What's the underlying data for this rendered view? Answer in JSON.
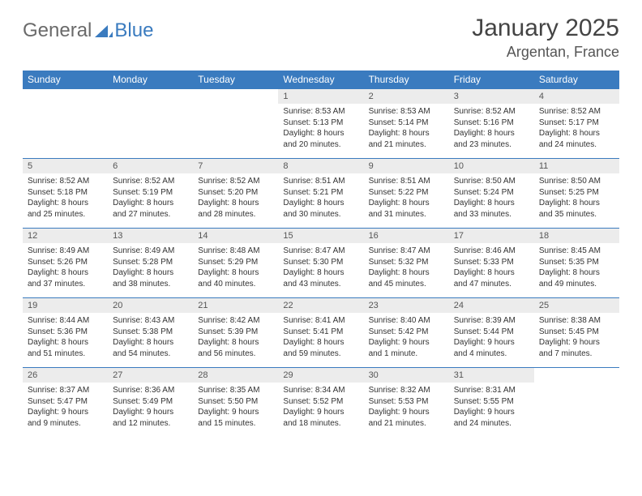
{
  "brand": {
    "part1": "General",
    "part2": "Blue"
  },
  "title": "January 2025",
  "location": "Argentan, France",
  "colors": {
    "header_bg": "#3a7bbf",
    "header_text": "#ffffff",
    "daynum_bg": "#ececec",
    "row_border": "#3a7bbf",
    "body_text": "#333333",
    "page_bg": "#ffffff",
    "logo_gray": "#6a6a6a",
    "logo_blue": "#3a7bbf"
  },
  "fonts": {
    "month_title_pt": 30,
    "location_pt": 18,
    "weekday_pt": 12,
    "daynum_pt": 11,
    "cell_pt": 10
  },
  "calendar": {
    "type": "table",
    "columns": [
      "Sunday",
      "Monday",
      "Tuesday",
      "Wednesday",
      "Thursday",
      "Friday",
      "Saturday"
    ],
    "weeks": [
      [
        null,
        null,
        null,
        {
          "d": "1",
          "sr": "8:53 AM",
          "ss": "5:13 PM",
          "dl": "8 hours and 20 minutes."
        },
        {
          "d": "2",
          "sr": "8:53 AM",
          "ss": "5:14 PM",
          "dl": "8 hours and 21 minutes."
        },
        {
          "d": "3",
          "sr": "8:52 AM",
          "ss": "5:16 PM",
          "dl": "8 hours and 23 minutes."
        },
        {
          "d": "4",
          "sr": "8:52 AM",
          "ss": "5:17 PM",
          "dl": "8 hours and 24 minutes."
        }
      ],
      [
        {
          "d": "5",
          "sr": "8:52 AM",
          "ss": "5:18 PM",
          "dl": "8 hours and 25 minutes."
        },
        {
          "d": "6",
          "sr": "8:52 AM",
          "ss": "5:19 PM",
          "dl": "8 hours and 27 minutes."
        },
        {
          "d": "7",
          "sr": "8:52 AM",
          "ss": "5:20 PM",
          "dl": "8 hours and 28 minutes."
        },
        {
          "d": "8",
          "sr": "8:51 AM",
          "ss": "5:21 PM",
          "dl": "8 hours and 30 minutes."
        },
        {
          "d": "9",
          "sr": "8:51 AM",
          "ss": "5:22 PM",
          "dl": "8 hours and 31 minutes."
        },
        {
          "d": "10",
          "sr": "8:50 AM",
          "ss": "5:24 PM",
          "dl": "8 hours and 33 minutes."
        },
        {
          "d": "11",
          "sr": "8:50 AM",
          "ss": "5:25 PM",
          "dl": "8 hours and 35 minutes."
        }
      ],
      [
        {
          "d": "12",
          "sr": "8:49 AM",
          "ss": "5:26 PM",
          "dl": "8 hours and 37 minutes."
        },
        {
          "d": "13",
          "sr": "8:49 AM",
          "ss": "5:28 PM",
          "dl": "8 hours and 38 minutes."
        },
        {
          "d": "14",
          "sr": "8:48 AM",
          "ss": "5:29 PM",
          "dl": "8 hours and 40 minutes."
        },
        {
          "d": "15",
          "sr": "8:47 AM",
          "ss": "5:30 PM",
          "dl": "8 hours and 43 minutes."
        },
        {
          "d": "16",
          "sr": "8:47 AM",
          "ss": "5:32 PM",
          "dl": "8 hours and 45 minutes."
        },
        {
          "d": "17",
          "sr": "8:46 AM",
          "ss": "5:33 PM",
          "dl": "8 hours and 47 minutes."
        },
        {
          "d": "18",
          "sr": "8:45 AM",
          "ss": "5:35 PM",
          "dl": "8 hours and 49 minutes."
        }
      ],
      [
        {
          "d": "19",
          "sr": "8:44 AM",
          "ss": "5:36 PM",
          "dl": "8 hours and 51 minutes."
        },
        {
          "d": "20",
          "sr": "8:43 AM",
          "ss": "5:38 PM",
          "dl": "8 hours and 54 minutes."
        },
        {
          "d": "21",
          "sr": "8:42 AM",
          "ss": "5:39 PM",
          "dl": "8 hours and 56 minutes."
        },
        {
          "d": "22",
          "sr": "8:41 AM",
          "ss": "5:41 PM",
          "dl": "8 hours and 59 minutes."
        },
        {
          "d": "23",
          "sr": "8:40 AM",
          "ss": "5:42 PM",
          "dl": "9 hours and 1 minute."
        },
        {
          "d": "24",
          "sr": "8:39 AM",
          "ss": "5:44 PM",
          "dl": "9 hours and 4 minutes."
        },
        {
          "d": "25",
          "sr": "8:38 AM",
          "ss": "5:45 PM",
          "dl": "9 hours and 7 minutes."
        }
      ],
      [
        {
          "d": "26",
          "sr": "8:37 AM",
          "ss": "5:47 PM",
          "dl": "9 hours and 9 minutes."
        },
        {
          "d": "27",
          "sr": "8:36 AM",
          "ss": "5:49 PM",
          "dl": "9 hours and 12 minutes."
        },
        {
          "d": "28",
          "sr": "8:35 AM",
          "ss": "5:50 PM",
          "dl": "9 hours and 15 minutes."
        },
        {
          "d": "29",
          "sr": "8:34 AM",
          "ss": "5:52 PM",
          "dl": "9 hours and 18 minutes."
        },
        {
          "d": "30",
          "sr": "8:32 AM",
          "ss": "5:53 PM",
          "dl": "9 hours and 21 minutes."
        },
        {
          "d": "31",
          "sr": "8:31 AM",
          "ss": "5:55 PM",
          "dl": "9 hours and 24 minutes."
        },
        null
      ]
    ],
    "labels": {
      "sunrise": "Sunrise:",
      "sunset": "Sunset:",
      "daylight": "Daylight:"
    }
  }
}
